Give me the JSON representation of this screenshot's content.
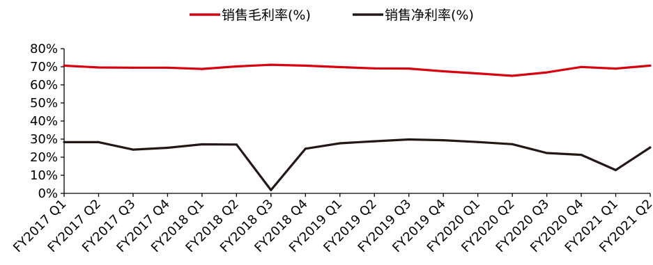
{
  "chart_data": {
    "type": "line",
    "categories": [
      "FY2017 Q1",
      "FY2017 Q2",
      "FY2017 Q3",
      "FY2017 Q4",
      "FY2018 Q1",
      "FY2018 Q2",
      "FY2018 Q3",
      "FY2018 Q4",
      "FY2019 Q1",
      "FY2019 Q2",
      "FY2019 Q3",
      "FY2019 Q4",
      "FY2020 Q1",
      "FY2020 Q2",
      "FY2020 Q3",
      "FY2020 Q4",
      "FY2021 Q1",
      "FY2021 Q2"
    ],
    "series": [
      {
        "name": "销售毛利率(%)",
        "color": "#d7000f",
        "values": [
          70.6,
          69.6,
          69.5,
          69.5,
          68.8,
          70.2,
          71.1,
          70.6,
          69.8,
          69.1,
          69.0,
          67.5,
          66.3,
          65.0,
          66.9,
          69.9,
          69.0,
          70.6
        ]
      },
      {
        "name": "销售净利率(%)",
        "color": "#231815",
        "values": [
          28.3,
          28.3,
          24.2,
          25.2,
          27.1,
          27.0,
          1.8,
          24.7,
          27.7,
          28.8,
          29.8,
          29.4,
          28.4,
          27.2,
          22.3,
          21.3,
          12.9,
          25.4
        ]
      }
    ],
    "yticks": [
      "0%",
      "10%",
      "20%",
      "30%",
      "40%",
      "50%",
      "60%",
      "70%",
      "80%"
    ],
    "ylim": [
      0,
      80
    ],
    "grid": false,
    "legend": "top-center"
  }
}
